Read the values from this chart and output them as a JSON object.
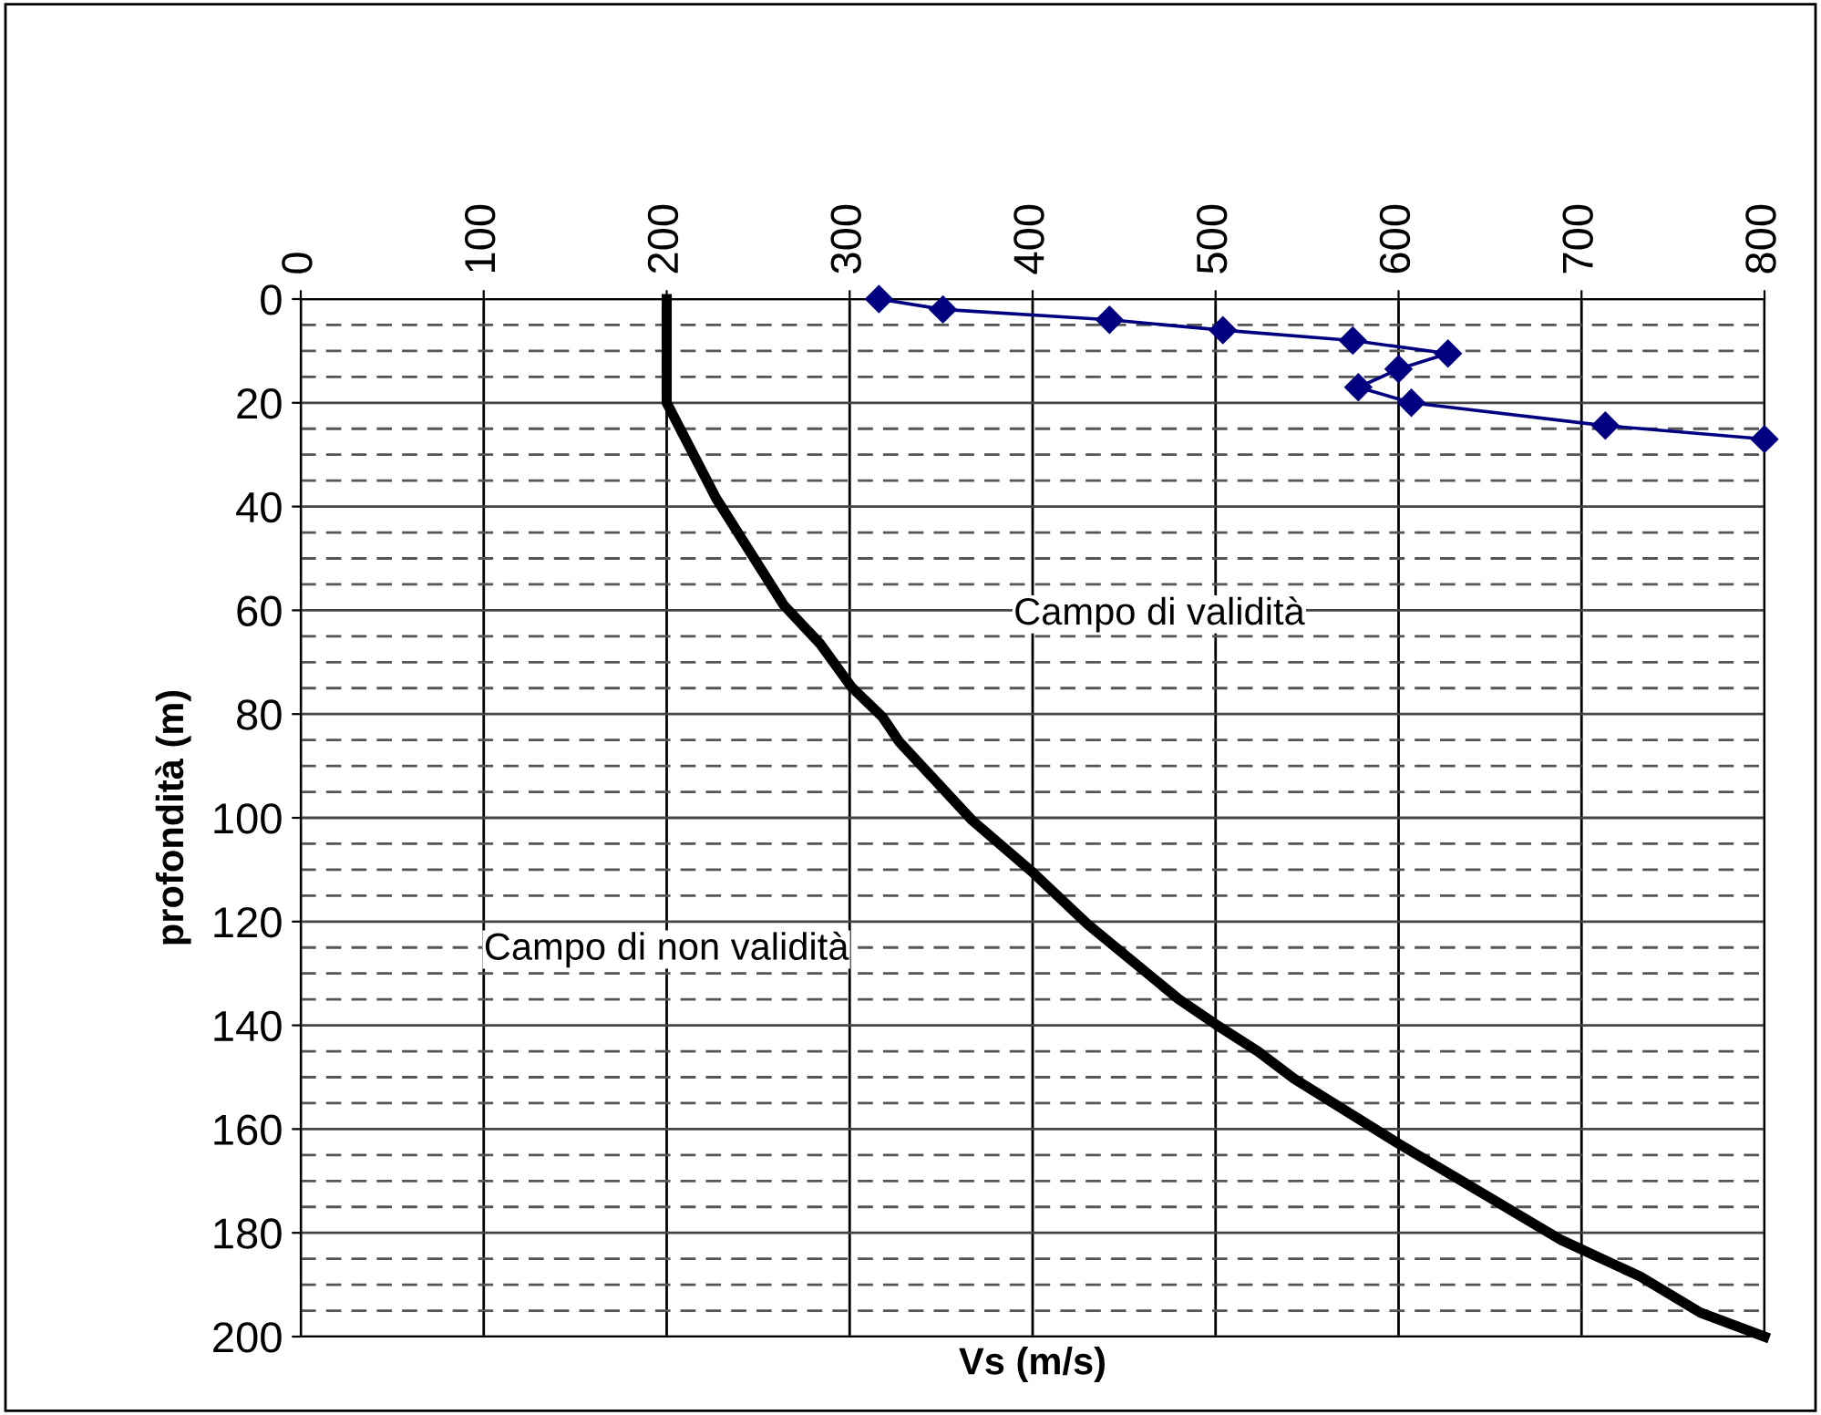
{
  "chart_data": {
    "type": "line",
    "xlabel": "Vs (m/s)",
    "ylabel": "profondità (m)",
    "xlim": [
      0,
      800
    ],
    "xticks": [
      0,
      100,
      200,
      300,
      400,
      500,
      600,
      700,
      800
    ],
    "ylim": [
      200,
      0
    ],
    "yticks": [
      0,
      20,
      40,
      60,
      80,
      100,
      120,
      140,
      160,
      180,
      200
    ],
    "grid": true,
    "legend": false,
    "series": [
      {
        "color": "#000080",
        "marker": "diamond",
        "x": [
          316,
          351,
          442,
          504,
          575,
          627,
          600,
          578,
          607,
          713,
          800
        ],
        "values": [
          0,
          2,
          4,
          6,
          8,
          10.5,
          13.5,
          17,
          20,
          24.4,
          27
        ]
      },
      {
        "color": "#000000",
        "marker": "none",
        "x": [
          200,
          200,
          227,
          264,
          284,
          301,
          318,
          327,
          367,
          400,
          430,
          480,
          500,
          523,
          543,
          599,
          633,
          689,
          732,
          765,
          800
        ],
        "values": [
          0,
          20,
          38.4,
          59,
          66.5,
          74.8,
          80.6,
          85.3,
          100.5,
          110.5,
          120.5,
          135,
          139.8,
          145,
          150.3,
          162.6,
          169.7,
          181.4,
          188.4,
          195.4,
          200
        ]
      }
    ],
    "annotations": [
      "Campo di validità",
      "Campo di non validità"
    ]
  }
}
